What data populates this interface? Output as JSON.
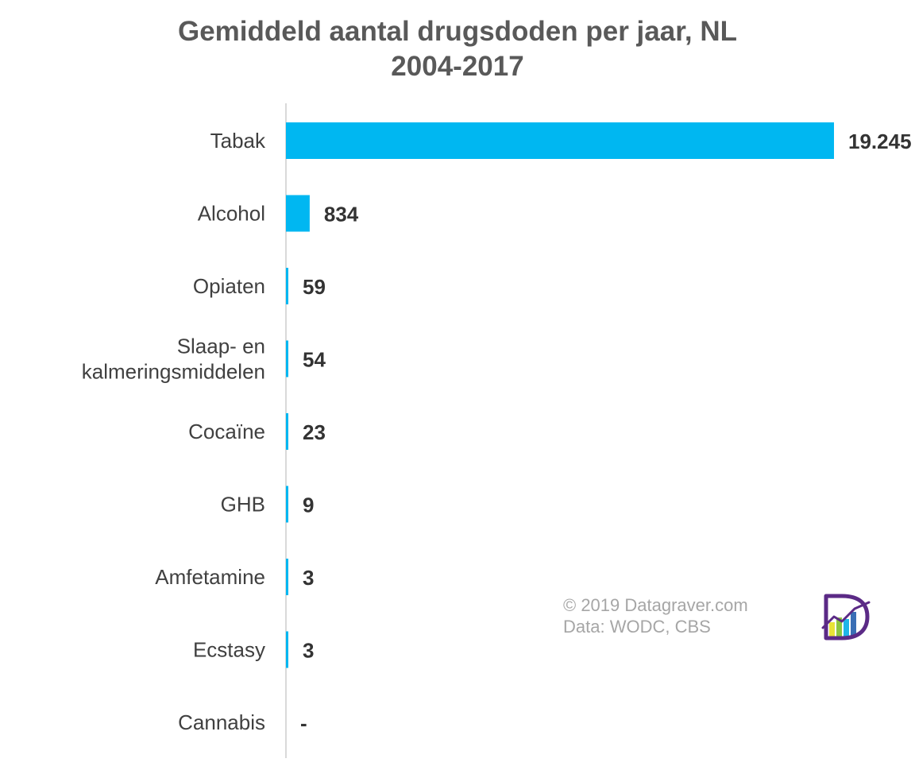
{
  "colors": {
    "bar": "#00b7f1",
    "title": "#595959",
    "axis": "#d9d9d9",
    "credit": "#a6a6a6"
  },
  "chart_data": {
    "type": "bar",
    "orientation": "horizontal",
    "title": "Gemiddeld aantal drugsdoden per jaar, NL",
    "subtitle": "2004-2017",
    "categories": [
      "Tabak",
      "Alcohol",
      "Opiaten",
      "Slaap- en kalmeringsmiddelen",
      "Cocaïne",
      "GHB",
      "Amfetamine",
      "Ecstasy",
      "Cannabis"
    ],
    "category_lines": [
      [
        "Tabak"
      ],
      [
        "Alcohol"
      ],
      [
        "Opiaten"
      ],
      [
        "Slaap- en",
        "kalmeringsmiddelen"
      ],
      [
        "Cocaïne"
      ],
      [
        "GHB"
      ],
      [
        "Amfetamine"
      ],
      [
        "Ecstasy"
      ],
      [
        "Cannabis"
      ]
    ],
    "values": [
      19245,
      834,
      59,
      54,
      23,
      9,
      3,
      3,
      0
    ],
    "value_labels": [
      "19.245",
      "834",
      "59",
      "54",
      "23",
      "9",
      "3",
      "3",
      "-"
    ],
    "xlim": [
      0,
      19245
    ],
    "grid": false,
    "legend": "none"
  },
  "credit": {
    "line1": "© 2019 Datagraver.com",
    "line2": "Data: WODC, CBS"
  },
  "logo": {
    "icon": "datagraver-logo-icon",
    "colors": [
      "#5b2a86",
      "#e8e337",
      "#8cc63f",
      "#1fb5e9",
      "#3a6fb5"
    ]
  }
}
